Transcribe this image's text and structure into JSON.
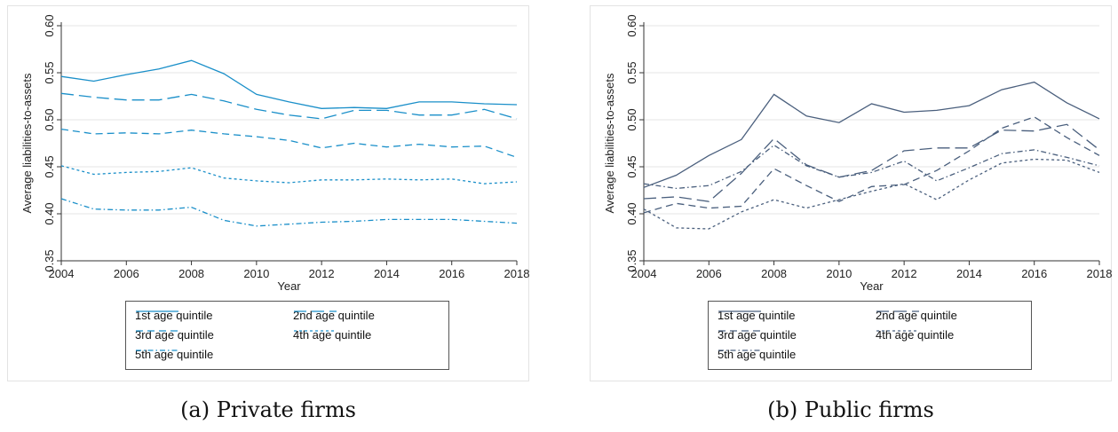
{
  "chart_data": [
    {
      "type": "line",
      "caption": "(a) Private firms",
      "xlabel": "Year",
      "ylabel": "Average liabilities-to-assets",
      "xlim": [
        2004,
        2018
      ],
      "ylim": [
        0.35,
        0.6
      ],
      "xticks": [
        "2004",
        "2006",
        "2008",
        "2010",
        "2012",
        "2014",
        "2016",
        "2018"
      ],
      "yticks": [
        "0.35",
        "0.40",
        "0.45",
        "0.50",
        "0.55",
        "0.60"
      ],
      "grid": true,
      "legend_position": "bottom",
      "color": "#1a8fc9",
      "x": [
        2004,
        2005,
        2006,
        2007,
        2008,
        2009,
        2010,
        2011,
        2012,
        2013,
        2014,
        2015,
        2016,
        2017,
        2018
      ],
      "series": [
        {
          "name": "1st age quintile",
          "dash": "solid",
          "values": [
            0.546,
            0.541,
            0.548,
            0.554,
            0.563,
            0.549,
            0.527,
            0.519,
            0.512,
            0.513,
            0.512,
            0.519,
            0.519,
            0.517,
            0.516
          ]
        },
        {
          "name": "2nd age quintile",
          "dash": "long",
          "values": [
            0.528,
            0.524,
            0.521,
            0.521,
            0.527,
            0.52,
            0.511,
            0.505,
            0.501,
            0.51,
            0.51,
            0.505,
            0.505,
            0.511,
            0.501
          ]
        },
        {
          "name": "3rd age quintile",
          "dash": "medium",
          "values": [
            0.49,
            0.485,
            0.486,
            0.485,
            0.489,
            0.485,
            0.482,
            0.478,
            0.47,
            0.475,
            0.471,
            0.474,
            0.471,
            0.472,
            0.46
          ]
        },
        {
          "name": "4th age quintile",
          "dash": "short",
          "values": [
            0.451,
            0.442,
            0.444,
            0.445,
            0.449,
            0.438,
            0.435,
            0.433,
            0.436,
            0.436,
            0.437,
            0.436,
            0.437,
            0.432,
            0.434
          ]
        },
        {
          "name": "5th age quintile",
          "dash": "dashdot",
          "values": [
            0.416,
            0.405,
            0.404,
            0.404,
            0.407,
            0.393,
            0.387,
            0.389,
            0.391,
            0.392,
            0.394,
            0.394,
            0.394,
            0.392,
            0.39
          ]
        }
      ]
    },
    {
      "type": "line",
      "caption": "(b) Public firms",
      "xlabel": "Year",
      "ylabel": "Average liabilities-to-assets",
      "xlim": [
        2004,
        2018
      ],
      "ylim": [
        0.35,
        0.6
      ],
      "xticks": [
        "2004",
        "2006",
        "2008",
        "2010",
        "2012",
        "2014",
        "2016",
        "2018"
      ],
      "yticks": [
        "0.35",
        "0.40",
        "0.45",
        "0.50",
        "0.55",
        "0.60"
      ],
      "grid": true,
      "legend_position": "bottom",
      "color": "#4a5f7d",
      "x": [
        2004,
        2005,
        2006,
        2007,
        2008,
        2009,
        2010,
        2011,
        2012,
        2013,
        2014,
        2015,
        2016,
        2017,
        2018
      ],
      "series": [
        {
          "name": "1st age quintile",
          "dash": "solid",
          "values": [
            0.428,
            0.441,
            0.462,
            0.479,
            0.527,
            0.504,
            0.497,
            0.517,
            0.508,
            0.51,
            0.515,
            0.532,
            0.54,
            0.518,
            0.501
          ]
        },
        {
          "name": "2nd age quintile",
          "dash": "long",
          "values": [
            0.416,
            0.418,
            0.413,
            0.443,
            0.48,
            0.452,
            0.439,
            0.446,
            0.467,
            0.47,
            0.47,
            0.489,
            0.488,
            0.495,
            0.468
          ]
        },
        {
          "name": "3rd age quintile",
          "dash": "medium",
          "values": [
            0.401,
            0.411,
            0.406,
            0.408,
            0.448,
            0.43,
            0.413,
            0.429,
            0.431,
            0.446,
            0.467,
            0.491,
            0.503,
            0.481,
            0.462
          ]
        },
        {
          "name": "4th age quintile",
          "dash": "short",
          "values": [
            0.405,
            0.385,
            0.384,
            0.402,
            0.415,
            0.406,
            0.415,
            0.424,
            0.432,
            0.415,
            0.436,
            0.454,
            0.458,
            0.457,
            0.444
          ]
        },
        {
          "name": "5th age quintile",
          "dash": "dashdot",
          "values": [
            0.432,
            0.427,
            0.43,
            0.445,
            0.473,
            0.451,
            0.439,
            0.444,
            0.456,
            0.435,
            0.449,
            0.464,
            0.468,
            0.46,
            0.451
          ]
        }
      ]
    }
  ]
}
